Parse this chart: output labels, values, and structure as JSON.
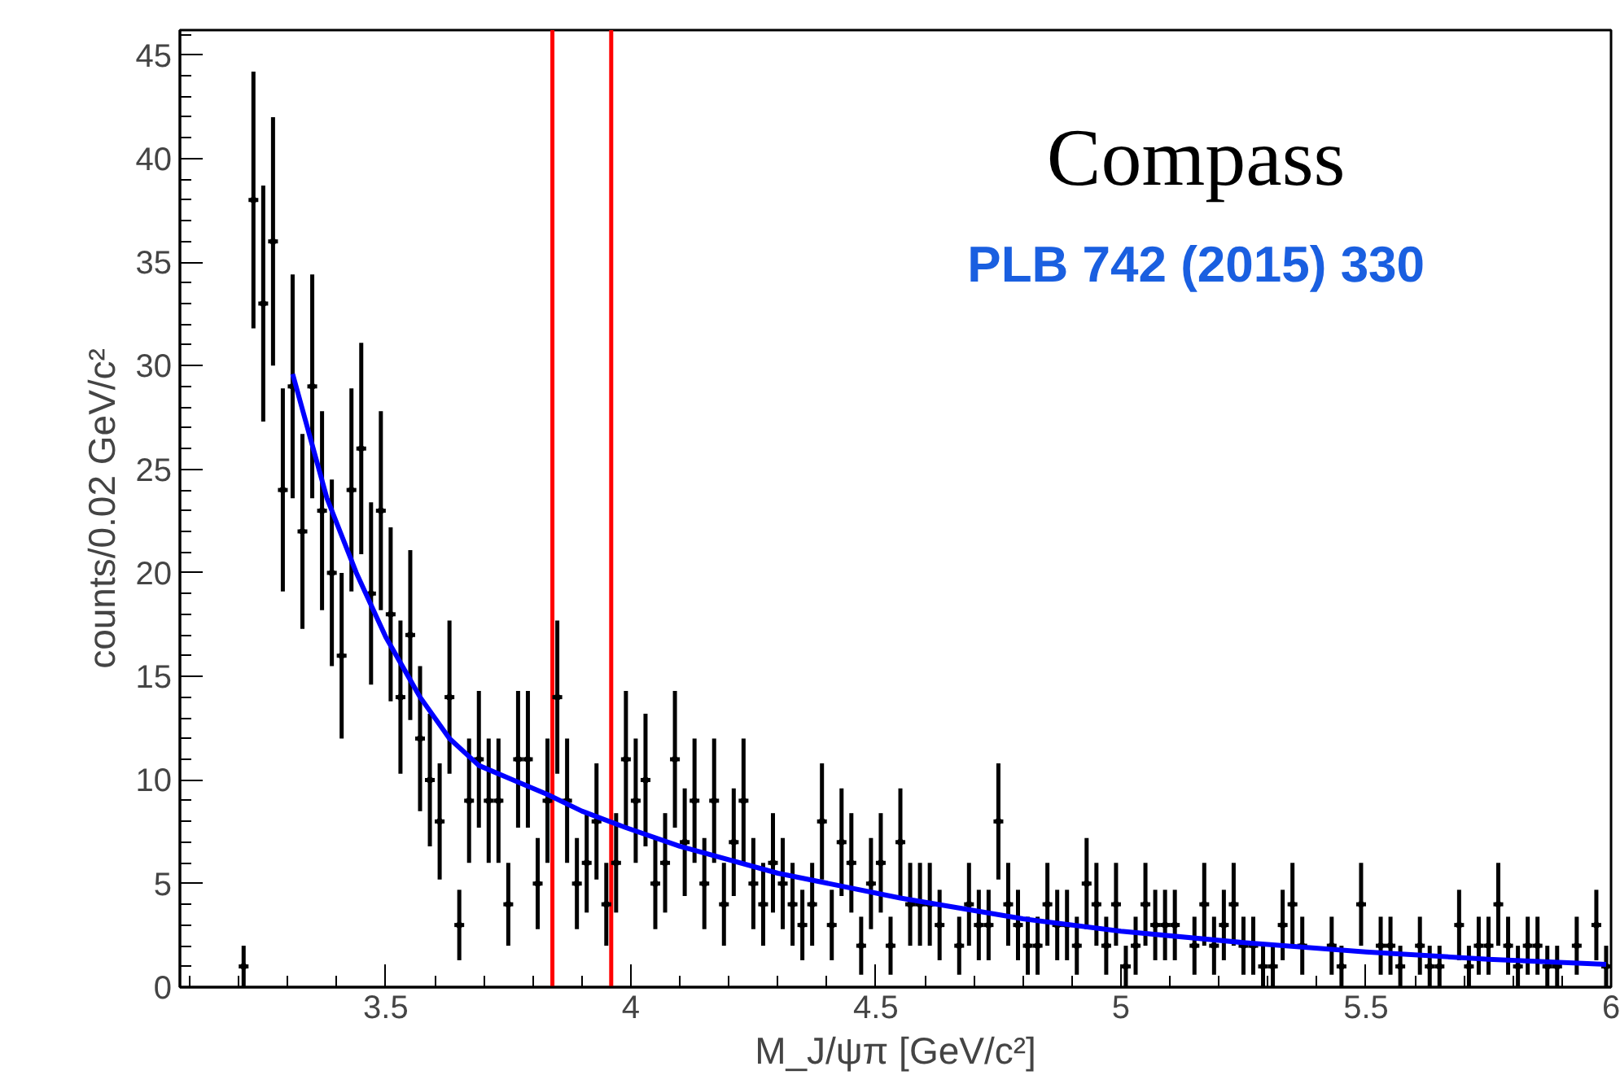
{
  "chart_data": {
    "type": "scatter",
    "xlabel": "M_J/ψπ [GeV/c²]",
    "ylabel": "counts/0.02 GeV/c²",
    "annotations": [
      "Compass",
      "PLB 742 (2015) 330"
    ],
    "xlim": [
      3.08,
      6.0
    ],
    "ylim": [
      0,
      46.2
    ],
    "xticks": [
      3.5,
      4,
      4.5,
      5,
      5.5,
      6
    ],
    "yticks": [
      0,
      5,
      10,
      15,
      20,
      25,
      30,
      35,
      40,
      45
    ],
    "grid": false,
    "marker": "circle",
    "ref_lines": [
      {
        "axis": "x",
        "value": 3.84,
        "color": "#ff0000"
      },
      {
        "axis": "x",
        "value": 3.96,
        "color": "#ff0000"
      }
    ],
    "series": [
      {
        "color": "#000000",
        "x": [
          3.21,
          3.23,
          3.25,
          3.27,
          3.29,
          3.31,
          3.33,
          3.35,
          3.37,
          3.39,
          3.41,
          3.43,
          3.45,
          3.47,
          3.49,
          3.51,
          3.53,
          3.55,
          3.57,
          3.59,
          3.61,
          3.63,
          3.65,
          3.67,
          3.69,
          3.71,
          3.73,
          3.75,
          3.77,
          3.79,
          3.81,
          3.83,
          3.85,
          3.87,
          3.89,
          3.91,
          3.93,
          3.95,
          3.97,
          3.99,
          4.01,
          4.03,
          4.05,
          4.07,
          4.09,
          4.11,
          4.13,
          4.15,
          4.17,
          4.19,
          4.21,
          4.23,
          4.25,
          4.27,
          4.29,
          4.31,
          4.33,
          4.35,
          4.37,
          4.39,
          4.41,
          4.43,
          4.45,
          4.47,
          4.49,
          4.51,
          4.53,
          4.55,
          4.57,
          4.59,
          4.61,
          4.63,
          4.65,
          4.67,
          4.69,
          4.71,
          4.73,
          4.75,
          4.77,
          4.79,
          4.81,
          4.83,
          4.85,
          4.87,
          4.89,
          4.91,
          4.93,
          4.95,
          4.97,
          4.99,
          5.01,
          5.03,
          5.05,
          5.07,
          5.09,
          5.11,
          5.13,
          5.15,
          5.17,
          5.19,
          5.21,
          5.23,
          5.25,
          5.27,
          5.29,
          5.31,
          5.33,
          5.35,
          5.37,
          5.39,
          5.41,
          5.43,
          5.45,
          5.47,
          5.49,
          5.51,
          5.53,
          5.55,
          5.57,
          5.59,
          5.61,
          5.63,
          5.65,
          5.67,
          5.69,
          5.71,
          5.73,
          5.75,
          5.77,
          5.79,
          5.81,
          5.83,
          5.85,
          5.87,
          5.89,
          5.91,
          5.93,
          5.95,
          5.97,
          5.99
        ],
        "values": [
          1,
          38,
          33,
          36,
          24,
          29,
          22,
          29,
          23,
          20,
          16,
          24,
          26,
          19,
          23,
          18,
          14,
          17,
          12,
          10,
          8,
          14,
          3,
          9,
          11,
          9,
          9,
          4,
          11,
          11,
          5,
          9,
          14,
          9,
          5,
          6,
          8,
          4,
          6,
          11,
          9,
          10,
          5,
          6,
          11,
          7,
          9,
          5,
          9,
          4,
          7,
          9,
          5,
          4,
          6,
          5,
          4,
          3,
          4,
          8,
          3,
          7,
          6,
          2,
          5,
          6,
          2,
          7,
          4,
          4,
          4,
          3,
          null,
          2,
          4,
          3,
          3,
          8,
          4,
          3,
          2,
          2,
          4,
          3,
          3,
          2,
          5,
          4,
          2,
          4,
          1,
          2,
          4,
          3,
          3,
          3,
          null,
          2,
          4,
          2,
          3,
          4,
          2,
          2,
          1,
          1,
          3,
          4,
          2,
          null,
          null,
          2,
          1,
          null,
          4,
          null,
          2,
          2,
          1,
          null,
          2,
          1,
          1,
          null,
          3,
          1,
          2,
          2,
          4,
          2,
          1,
          2,
          2,
          1,
          1,
          null,
          2,
          null,
          3,
          1
        ],
        "errors": [
          1,
          6.2,
          5.7,
          6,
          4.9,
          5.4,
          4.7,
          5.4,
          4.8,
          4.5,
          4,
          4.9,
          5.1,
          4.4,
          4.8,
          4.2,
          3.7,
          4.1,
          3.5,
          3.2,
          2.8,
          3.7,
          1.7,
          3,
          3.3,
          3,
          3,
          2,
          3.3,
          3.3,
          2.2,
          3,
          3.7,
          3,
          2.2,
          2.4,
          2.8,
          2,
          2.4,
          3.3,
          3,
          3.2,
          2.2,
          2.4,
          3.3,
          2.6,
          3,
          2.2,
          3,
          2,
          2.6,
          3,
          2.2,
          2,
          2.4,
          2.2,
          2,
          1.7,
          2,
          2.8,
          1.7,
          2.6,
          2.4,
          1.4,
          2.2,
          2.4,
          1.4,
          2.6,
          2,
          2,
          2,
          1.7,
          null,
          1.4,
          2,
          1.7,
          1.7,
          2.8,
          2,
          1.7,
          1.4,
          1.4,
          2,
          1.7,
          1.7,
          1.4,
          2.2,
          2,
          1.4,
          2,
          1,
          1.4,
          2,
          1.7,
          1.7,
          1.7,
          null,
          1.4,
          2,
          1.4,
          1.7,
          2,
          1.4,
          1.4,
          1,
          1,
          1.7,
          2,
          1.4,
          null,
          null,
          1.4,
          1,
          null,
          2,
          null,
          1.4,
          1.4,
          1,
          null,
          1.4,
          1,
          1,
          null,
          1.7,
          1,
          1.4,
          1.4,
          2,
          1.4,
          1,
          1.4,
          1.4,
          1,
          1,
          null,
          1.4,
          null,
          1.7,
          1
        ],
        "xerrors": [
          0.01,
          0.01,
          0.01,
          0.01,
          0.01,
          0.01,
          0.01,
          0.01,
          0.01,
          0.01,
          0.01,
          0.01,
          0.01,
          0.01,
          0.01,
          0.01,
          0.01,
          0.01,
          0.01,
          0.01,
          0.01,
          0.01,
          0.01,
          0.01,
          0.01,
          0.01,
          0.01,
          0.01,
          0.01,
          0.01,
          0.01,
          0.01,
          0.01,
          0.01,
          0.01,
          0.01,
          0.01,
          0.01,
          0.01,
          0.01,
          0.01,
          0.01,
          0.01,
          0.01,
          0.01,
          0.01,
          0.01,
          0.01,
          0.01,
          0.01,
          0.01,
          0.01,
          0.01,
          0.01,
          0.01,
          0.01,
          0.01,
          0.01,
          0.01,
          0.01,
          0.01,
          0.01,
          0.01,
          0.01,
          0.01,
          0.01,
          0.01,
          0.01,
          0.01,
          0.01,
          0.01,
          0.01,
          null,
          0.01,
          0.01,
          0.01,
          0.01,
          0.01,
          0.01,
          0.01,
          0.01,
          0.01,
          0.01,
          0.01,
          0.01,
          0.01,
          0.01,
          0.01,
          0.01,
          0.01,
          0.01,
          0.01,
          0.01,
          0.01,
          0.01,
          0.01,
          null,
          0.01,
          0.01,
          0.01,
          0.01,
          0.01,
          0.01,
          0.01,
          0.01,
          0.01,
          0.01,
          0.01,
          0.01,
          null,
          null,
          0.01,
          0.01,
          null,
          0.01,
          null,
          0.01,
          0.01,
          0.01,
          null,
          0.01,
          0.01,
          0.01,
          null,
          0.01,
          0.01,
          0.01,
          0.01,
          0.01,
          0.01,
          0.01,
          0.01,
          0.01,
          0.01,
          0.01,
          null,
          0.01,
          null,
          0.01,
          0.01
        ]
      },
      {
        "type": "line",
        "color": "#0000ff",
        "marker": "none",
        "x": [
          3.31,
          3.38,
          3.44,
          3.5,
          3.57,
          3.63,
          3.69,
          3.76,
          3.83,
          3.9,
          3.99,
          4.1,
          4.3,
          4.55,
          4.8,
          5.0,
          5.25,
          5.5,
          5.75,
          5.99
        ],
        "values": [
          29.6,
          23.6,
          20,
          16.9,
          14,
          12,
          10.7,
          10,
          9.3,
          8.5,
          7.7,
          6.8,
          5.5,
          4.3,
          3.3,
          2.7,
          2.15,
          1.7,
          1.35,
          1.1
        ]
      }
    ]
  }
}
